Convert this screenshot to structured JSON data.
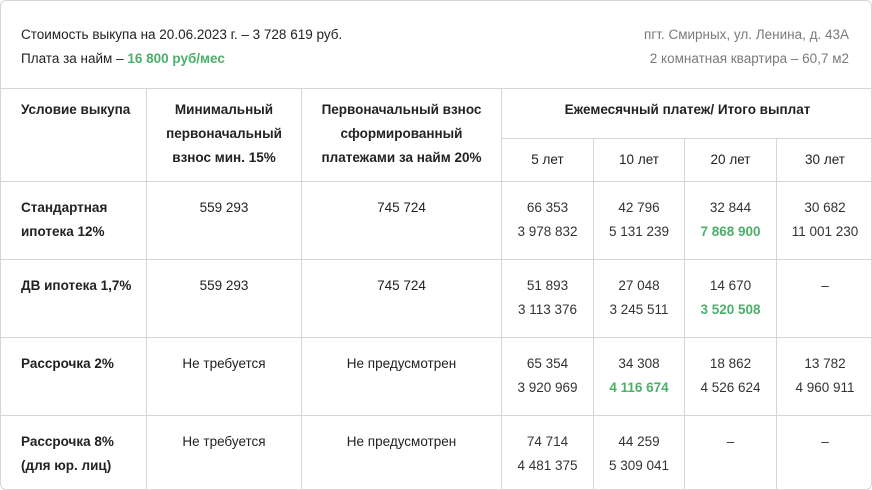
{
  "header": {
    "price_line": "Стоимость выкупа на 20.06.2023 г. – 3 728 619 руб.",
    "rent_label": "Плата за найм – ",
    "rent_value": "16 800 руб/мес",
    "address": "пгт. Смирных, ул. Ленина, д. 43А",
    "apartment": "2 комнатная квартира – 60,7 м2"
  },
  "table": {
    "col_condition": "Условие выкупа",
    "col_min_down_1": "Минимальный",
    "col_min_down_2": "первоначальный",
    "col_min_down_3": "взнос мин. 15%",
    "col_initial_1": "Первоначальный взнос",
    "col_initial_2": "сформированный",
    "col_initial_3": "платежами за найм 20%",
    "col_monthly": "Ежемесячный платеж/ Итого выплат",
    "years": [
      "5 лет",
      "10 лет",
      "20 лет",
      "30 лет"
    ],
    "rows": [
      {
        "name_1": "Стандартная",
        "name_2": "ипотека 12%",
        "min_down": "559 293",
        "initial": "745 724",
        "payments": [
          {
            "monthly": "66 353",
            "total": "3 978 832",
            "highlight": false
          },
          {
            "monthly": "42 796",
            "total": "5 131 239",
            "highlight": false
          },
          {
            "monthly": "32 844",
            "total": "7 868 900",
            "highlight": true
          },
          {
            "monthly": "30 682",
            "total": "11 001 230",
            "highlight": false
          }
        ]
      },
      {
        "name_1": "ДВ ипотека 1,7%",
        "name_2": "",
        "min_down": "559 293",
        "initial": "745 724",
        "payments": [
          {
            "monthly": "51 893",
            "total": "3 113 376",
            "highlight": false
          },
          {
            "monthly": "27 048",
            "total": "3 245 511",
            "highlight": false
          },
          {
            "monthly": "14 670",
            "total": "3 520 508",
            "highlight": true
          },
          {
            "monthly": "–",
            "total": "",
            "highlight": false
          }
        ]
      },
      {
        "name_1": "Рассрочка 2%",
        "name_2": "",
        "min_down": "Не требуется",
        "initial": "Не предусмотрен",
        "payments": [
          {
            "monthly": "65 354",
            "total": "3 920 969",
            "highlight": false
          },
          {
            "monthly": "34 308",
            "total": "4 116 674",
            "highlight": true
          },
          {
            "monthly": "18 862",
            "total": "4 526 624",
            "highlight": false
          },
          {
            "monthly": "13 782",
            "total": "4 960 911",
            "highlight": false
          }
        ]
      },
      {
        "name_1": "Рассрочка 8%",
        "name_2": "(для юр. лиц)",
        "min_down": "Не требуется",
        "initial": "Не предусмотрен",
        "payments": [
          {
            "monthly": "74 714",
            "total": "4 481 375",
            "highlight": false
          },
          {
            "monthly": "44 259",
            "total": "5 309 041",
            "highlight": false
          },
          {
            "monthly": "–",
            "total": "",
            "highlight": false
          },
          {
            "monthly": "–",
            "total": "",
            "highlight": false
          }
        ]
      }
    ]
  },
  "colors": {
    "accent_green": "#4caf6a",
    "border": "#d6d6d6",
    "muted_text": "#7a7a7a"
  }
}
